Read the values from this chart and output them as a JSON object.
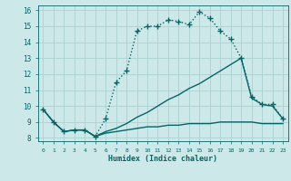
{
  "xlabel": "Humidex (Indice chaleur)",
  "xlim": [
    -0.5,
    23.5
  ],
  "ylim": [
    7.8,
    16.3
  ],
  "yticks": [
    8,
    9,
    10,
    11,
    12,
    13,
    14,
    15,
    16
  ],
  "xticks": [
    0,
    1,
    2,
    3,
    4,
    5,
    6,
    7,
    8,
    9,
    10,
    11,
    12,
    13,
    14,
    15,
    16,
    17,
    18,
    19,
    20,
    21,
    22,
    23
  ],
  "bg_color": "#cde8e8",
  "grid_color": "#b0d4d4",
  "line_color": "#006666",
  "series": [
    {
      "x": [
        0,
        1,
        2,
        3,
        4,
        5,
        6,
        7,
        8,
        9,
        10,
        11,
        12,
        13,
        14,
        15,
        16,
        17,
        18,
        19,
        20,
        21,
        22,
        23
      ],
      "y": [
        9.8,
        9.0,
        8.4,
        8.5,
        8.5,
        8.1,
        9.2,
        11.5,
        12.2,
        14.7,
        15.0,
        15.0,
        15.4,
        15.3,
        15.1,
        15.9,
        15.5,
        14.7,
        14.2,
        13.0,
        10.6,
        10.1,
        10.1,
        9.2
      ],
      "marker": "+",
      "linestyle": ":",
      "linewidth": 1.0,
      "markersize": 4
    },
    {
      "x": [
        0,
        1,
        2,
        3,
        4,
        5,
        6,
        7,
        8,
        9,
        10,
        11,
        12,
        13,
        14,
        15,
        16,
        17,
        18,
        19,
        20,
        21,
        22,
        23
      ],
      "y": [
        9.8,
        9.0,
        8.4,
        8.5,
        8.5,
        8.1,
        8.4,
        8.6,
        8.9,
        9.3,
        9.6,
        10.0,
        10.4,
        10.7,
        11.1,
        11.4,
        11.8,
        12.2,
        12.6,
        13.0,
        10.5,
        10.1,
        10.0,
        9.2
      ],
      "marker": null,
      "linestyle": "-",
      "linewidth": 1.0,
      "markersize": 0
    },
    {
      "x": [
        0,
        1,
        2,
        3,
        4,
        5,
        6,
        7,
        8,
        9,
        10,
        11,
        12,
        13,
        14,
        15,
        16,
        17,
        18,
        19,
        20,
        21,
        22,
        23
      ],
      "y": [
        9.8,
        9.0,
        8.4,
        8.5,
        8.5,
        8.1,
        8.3,
        8.4,
        8.5,
        8.6,
        8.7,
        8.7,
        8.8,
        8.8,
        8.9,
        8.9,
        8.9,
        9.0,
        9.0,
        9.0,
        9.0,
        8.9,
        8.9,
        8.9
      ],
      "marker": null,
      "linestyle": "-",
      "linewidth": 1.0,
      "markersize": 0
    }
  ]
}
